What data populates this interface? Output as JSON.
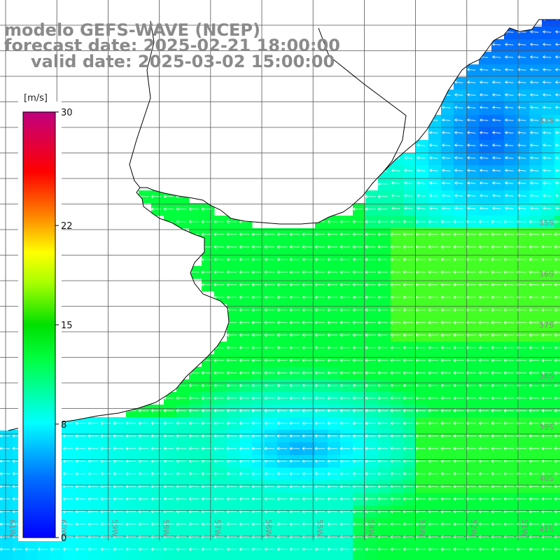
{
  "title": {
    "model": "modelo GEFS-WAVE (NCEP)",
    "forecast": "forecast date: 2025-02-21 18:00:00",
    "valid": "valid date: 2025-03-02 15:00:00"
  },
  "colorbar": {
    "unit": "[m/s]",
    "ticks": [
      "30",
      "22",
      "15",
      "8",
      "0"
    ],
    "tick_values": [
      30,
      22,
      15,
      8,
      0
    ],
    "colors": [
      "#0000ff",
      "#0080ff",
      "#00ffff",
      "#00ff00",
      "#ffff00",
      "#ff8000",
      "#ff0000",
      "#c00080"
    ]
  },
  "lat_labels": [
    "33S",
    "35S",
    "36S",
    "37S",
    "38S",
    "39S",
    "40S",
    "41S"
  ],
  "lon_labels": [
    "61W",
    "60W",
    "59W",
    "58W",
    "57W",
    "56W",
    "55W",
    "54W",
    "53W",
    "52W",
    "51W"
  ],
  "colors": {
    "land": "#ffffff",
    "grid": "#555555",
    "coast": "#000000",
    "label": "#8a8a8a",
    "arrow": "#ffffff"
  },
  "field": {
    "variable": "wind speed",
    "unit": "m/s",
    "typical_range": [
      5,
      13
    ]
  }
}
